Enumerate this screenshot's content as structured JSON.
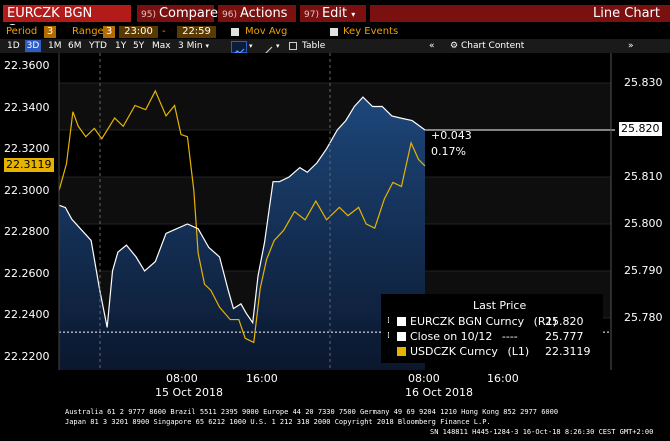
{
  "header": {
    "security": "EURCZK BGN Curncy",
    "buttons": [
      {
        "num": "95)",
        "label": "Compare"
      },
      {
        "num": "96)",
        "label": "Actions"
      },
      {
        "num": "97)",
        "label": "Edit"
      }
    ],
    "chart_type_label": "Line Chart"
  },
  "settings": {
    "period_label": "Period",
    "period_value": "3",
    "range_label": "Range",
    "range_value": "3",
    "range_start": "23:00",
    "range_end": "22:59",
    "mov_avg_label": "Mov Avg",
    "key_events_label": "Key Events"
  },
  "toolbar": {
    "periods": [
      "1D",
      "3D",
      "1M",
      "6M",
      "YTD",
      "1Y",
      "5Y",
      "Max"
    ],
    "active_period": "3D",
    "interval": "3 Min",
    "table_label": "Table",
    "chart_content_label": "Chart Content"
  },
  "colors": {
    "security_line": "#ffffff",
    "compare_line": "#e6b400",
    "area_top": "#1e4a80",
    "area_bottom": "#0b1830",
    "accent_red": "#b31a1a",
    "accent_orange": "#f0a000"
  },
  "annotations": {
    "change_abs": "+0.043",
    "change_pct": "0.17%",
    "last_right_value": "25.820",
    "last_left_value": "22.3119"
  },
  "legend": {
    "title": "Last Price",
    "items": [
      {
        "label": "EURCZK BGN Curncy",
        "axis": "(R1)",
        "value": "25.820",
        "color": "#ffffff"
      },
      {
        "label": "Close on 10/12",
        "axis": "----",
        "value": "25.777",
        "color": "#ffffff"
      },
      {
        "label": "USDCZK Curncy",
        "axis": "(L1)",
        "value": "22.3119",
        "color": "#e6b400"
      }
    ]
  },
  "chart_data": {
    "type": "line",
    "y_left_ticks": [
      "22.3600",
      "22.3400",
      "22.3200",
      "22.3000",
      "22.2800",
      "22.2600",
      "22.2400",
      "22.2200"
    ],
    "y_right_ticks": [
      "25.830",
      "25.820",
      "25.810",
      "25.800",
      "25.790",
      "25.780"
    ],
    "x_time_labels": [
      "08:00",
      "16:00",
      "08:00",
      "16:00"
    ],
    "x_date_labels": [
      "15 Oct 2018",
      "16 Oct 2018"
    ],
    "ylim_left": [
      22.2185,
      22.3655
    ],
    "ylim_right": [
      25.7685,
      25.8335
    ],
    "grid": true,
    "series": [
      {
        "name": "EURCZK BGN Curncy",
        "axis": "right",
        "points": [
          [
            0.0,
            25.804
          ],
          [
            0.6,
            25.8035
          ],
          [
            1.2,
            25.801
          ],
          [
            2.0,
            25.799
          ],
          [
            3.0,
            25.7965
          ],
          [
            3.8,
            25.786
          ],
          [
            4.5,
            25.778
          ],
          [
            5.0,
            25.79
          ],
          [
            5.5,
            25.794
          ],
          [
            6.3,
            25.7955
          ],
          [
            7.2,
            25.793
          ],
          [
            8.0,
            25.79
          ],
          [
            9.0,
            25.792
          ],
          [
            10.0,
            25.798
          ],
          [
            11.0,
            25.799
          ],
          [
            12.0,
            25.8
          ],
          [
            13.0,
            25.799
          ],
          [
            14.0,
            25.795
          ],
          [
            15.0,
            25.793
          ],
          [
            15.8,
            25.786
          ],
          [
            16.3,
            25.782
          ],
          [
            17.0,
            25.783
          ],
          [
            17.5,
            25.781
          ],
          [
            18.1,
            25.779
          ],
          [
            18.6,
            25.789
          ],
          [
            19.2,
            25.796
          ],
          [
            20.0,
            25.809
          ],
          [
            20.6,
            25.809
          ],
          [
            21.5,
            25.81
          ],
          [
            22.5,
            25.812
          ],
          [
            23.2,
            25.811
          ],
          [
            24.1,
            25.813
          ],
          [
            25.0,
            25.816
          ],
          [
            26.0,
            25.82
          ],
          [
            26.8,
            25.822
          ],
          [
            27.6,
            25.825
          ],
          [
            28.4,
            25.827
          ],
          [
            29.3,
            25.825
          ],
          [
            30.2,
            25.825
          ],
          [
            31.1,
            25.823
          ],
          [
            32.0,
            25.8225
          ],
          [
            33.0,
            25.822
          ],
          [
            34.2,
            25.82
          ]
        ]
      },
      {
        "name": "USDCZK Curncy",
        "axis": "left",
        "points": [
          [
            0.0,
            22.3
          ],
          [
            0.7,
            22.313
          ],
          [
            1.3,
            22.338
          ],
          [
            1.8,
            22.331
          ],
          [
            2.5,
            22.326
          ],
          [
            3.3,
            22.33
          ],
          [
            4.0,
            22.325
          ],
          [
            5.2,
            22.335
          ],
          [
            6.0,
            22.331
          ],
          [
            7.1,
            22.341
          ],
          [
            8.1,
            22.339
          ],
          [
            9.0,
            22.348
          ],
          [
            10.0,
            22.336
          ],
          [
            10.8,
            22.341
          ],
          [
            11.4,
            22.327
          ],
          [
            12.0,
            22.326
          ],
          [
            12.6,
            22.3
          ],
          [
            13.0,
            22.27
          ],
          [
            13.6,
            22.255
          ],
          [
            14.2,
            22.252
          ],
          [
            15.0,
            22.244
          ],
          [
            16.0,
            22.238
          ],
          [
            16.8,
            22.238
          ],
          [
            17.4,
            22.229
          ],
          [
            18.2,
            22.227
          ],
          [
            18.8,
            22.253
          ],
          [
            19.4,
            22.267
          ],
          [
            20.1,
            22.276
          ],
          [
            21.0,
            22.281
          ],
          [
            22.0,
            22.29
          ],
          [
            23.0,
            22.286
          ],
          [
            24.0,
            22.295
          ],
          [
            25.0,
            22.286
          ],
          [
            26.2,
            22.292
          ],
          [
            27.0,
            22.288
          ],
          [
            28.0,
            22.292
          ],
          [
            28.7,
            22.284
          ],
          [
            29.5,
            22.282
          ],
          [
            30.4,
            22.296
          ],
          [
            31.2,
            22.304
          ],
          [
            32.0,
            22.302
          ],
          [
            32.9,
            22.323
          ],
          [
            33.6,
            22.315
          ],
          [
            34.2,
            22.3119
          ]
        ]
      }
    ],
    "reference_lines": [
      {
        "name": "Close on 10/12",
        "axis": "right",
        "value": 25.777
      }
    ]
  }
}
